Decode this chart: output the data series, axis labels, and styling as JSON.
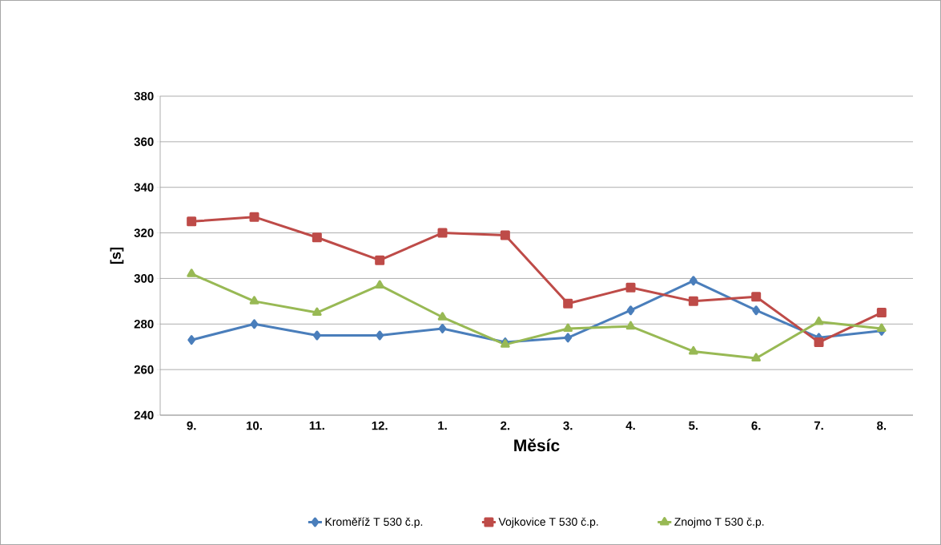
{
  "chart_data": {
    "type": "line",
    "xlabel": "Měsíc",
    "ylabel": "[s]",
    "categories": [
      "9.",
      "10.",
      "11.",
      "12.",
      "1.",
      "2.",
      "3.",
      "4.",
      "5.",
      "6.",
      "7.",
      "8."
    ],
    "series": [
      {
        "name": "Kroměříž T 530 č.p.",
        "color": "#4a7ebb",
        "marker": "diamond",
        "values": [
          273,
          280,
          275,
          275,
          278,
          272,
          274,
          286,
          299,
          286,
          274,
          277
        ]
      },
      {
        "name": "Vojkovice T 530 č.p.",
        "color": "#be4b48",
        "marker": "square",
        "values": [
          325,
          327,
          318,
          308,
          320,
          319,
          289,
          296,
          290,
          292,
          272,
          285
        ]
      },
      {
        "name": "Znojmo T 530 č.p.",
        "color": "#98b954",
        "marker": "triangle",
        "values": [
          302,
          290,
          285,
          297,
          283,
          271,
          278,
          279,
          268,
          265,
          281,
          278
        ]
      }
    ],
    "ylim": [
      240,
      380
    ],
    "yticks": [
      240,
      260,
      280,
      300,
      320,
      340,
      360,
      380
    ],
    "grid": "y",
    "legend": "bottom",
    "line_style": "solid"
  }
}
